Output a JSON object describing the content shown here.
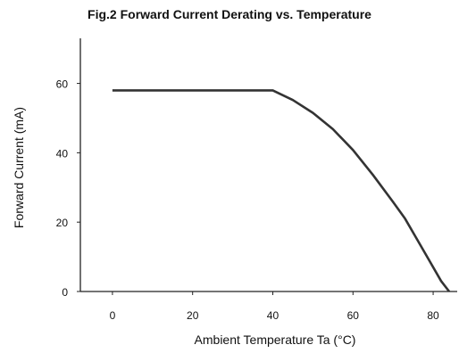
{
  "chart_data": {
    "type": "line",
    "title": "Fig.2 Forward Current Derating vs. Temperature",
    "xlabel": "Ambient Temperature Ta (°C)",
    "ylabel": "Forward Current (mA)",
    "xlim": [
      -8,
      86
    ],
    "ylim": [
      0,
      73
    ],
    "x_ticks": [
      0,
      20,
      40,
      60,
      80
    ],
    "y_ticks": [
      0,
      20,
      40,
      60
    ],
    "grid": false,
    "legend": "none",
    "line_color": "#333333",
    "series": [
      {
        "x": [
          0,
          40,
          45,
          50,
          55,
          60,
          65,
          70,
          73,
          76,
          79,
          82,
          84
        ],
        "y": [
          58,
          58,
          55.2,
          51.5,
          46.8,
          40.8,
          33.6,
          25.8,
          21,
          15,
          9,
          3,
          0
        ]
      }
    ]
  }
}
